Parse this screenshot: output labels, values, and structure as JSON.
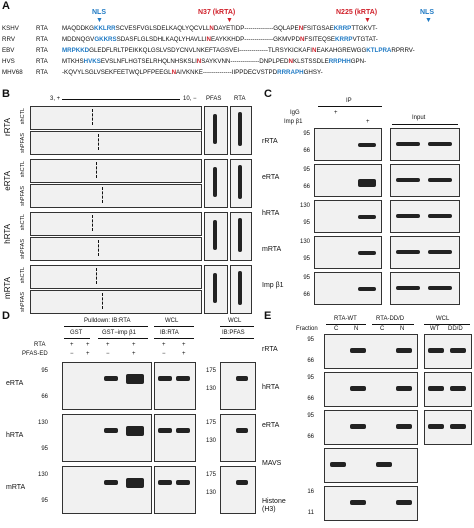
{
  "panel_a": {
    "label": "A",
    "nls_label_left": "NLS",
    "n37_label": "N37 (kRTA)",
    "n225_label": "N225 (kRTA)",
    "nls_label_right": "NLS",
    "rows": [
      {
        "virus": "KSHV",
        "protein": "RTA",
        "seq1": "MAQDDKG",
        "nls1": "KKLRR",
        "seq2": "SCVESFVGLSDELKAQLYQCVLL",
        "n": "N",
        "seq3": "DAYETIDP",
        "dash": "--------------",
        "seq4": "GQLAPE",
        "n2": "N",
        "seq5": "FSITGSAE",
        "nls2": "KRRP",
        "seq6": "TTGKVT-"
      },
      {
        "virus": "RRV",
        "protein": "RTA",
        "seq1": "MDDNQGV",
        "nls1": "GKKRS",
        "seq2": "SDASFLGLSDHLKAQLYHAVLLI",
        "n": "N",
        "seq3": "EAYKKHDP",
        "dash": "--------------",
        "seq4": "GKMVPD",
        "n2": "N",
        "seq5": "FSITEQSE",
        "nls2": "KRRP",
        "seq6": "VTGTAT-"
      },
      {
        "virus": "EBV",
        "protein": "RTA",
        "seq1": "",
        "nls1": "MRPKKD",
        "seq2": "GLEDFLRLTPEIKKQLGSLVSDYCN",
        "n": "",
        "seq3": "VLNKEFTAGSVEI",
        "dash": "--------------",
        "seq4": "TLRSYKICKAFI",
        "n2": "N",
        "seq5": "EAKAHGREWGG",
        "nls2": "KTLPRA",
        "seq6": "RPRRV-"
      },
      {
        "virus": "HVS",
        "protein": "RTA",
        "seq1": "MTKHS",
        "nls1": "HVKS",
        "seq2": "EVSLNFLHGTSELRHQLNHSKSLI",
        "n": "N",
        "seq3": "SAYKVNN",
        "dash": "--------------",
        "seq4": "DNPLPED",
        "n2": "N",
        "seq5": "KLSTSSDLE",
        "nls2": "RRPHH",
        "seq6": "GPN-"
      },
      {
        "virus": "MHV68",
        "protein": "RTA",
        "seq1": "",
        "nls1": "",
        "seq2": "-KQVYLSGLVSEKFEETWQLPFPEEGL",
        "n": "N",
        "seq3": "AIVKNKE",
        "dash": "--------------",
        "seq4": "IIPPDECVSTPD",
        "n2": "",
        "seq5": "",
        "nls2": "RRRAPH",
        "seq6": "GHSY-"
      }
    ]
  },
  "panel_b": {
    "label": "B",
    "gradient_left": "3, +",
    "gradient_right": "10, −",
    "col_pfas": "PFAS",
    "col_rta": "RTA",
    "groups": [
      {
        "name": "rRTA",
        "lanes": [
          "shCTL",
          "shPFAS"
        ]
      },
      {
        "name": "eRTA",
        "lanes": [
          "shCTL",
          "shPFAS"
        ]
      },
      {
        "name": "hRTA",
        "lanes": [
          "shCTL",
          "shPFAS"
        ]
      },
      {
        "name": "mRTA",
        "lanes": [
          "shCTL",
          "shPFAS"
        ]
      }
    ]
  },
  "panel_c": {
    "label": "C",
    "ip": "IP",
    "igg": "IgG",
    "imp": "Imp β1",
    "plus": "+",
    "input": "Input",
    "rows": [
      {
        "name": "rRTA",
        "ticks": [
          "95",
          "66"
        ]
      },
      {
        "name": "eRTA",
        "ticks": [
          "95",
          "66"
        ]
      },
      {
        "name": "hRTA",
        "ticks": [
          "130",
          "95"
        ]
      },
      {
        "name": "mRTA",
        "ticks": [
          "130",
          "95"
        ]
      },
      {
        "name": "Imp β1",
        "ticks": [
          "95",
          "66"
        ]
      }
    ]
  },
  "panel_d": {
    "label": "D",
    "pulldown": "Pulldown: IB:RTA",
    "wcl1": "WCL",
    "wcl2": "WCL",
    "gst": "GST",
    "gst_imp": "GST−imp β1",
    "ib_rta": "IB:RTA",
    "ib_pfas": "IB:PFAS",
    "rta": "RTA",
    "pfas_ed": "PFAS-ED",
    "rta_signs": [
      "+",
      "+",
      "+",
      "+",
      "+",
      "+"
    ],
    "pfas_signs": [
      "−",
      "+",
      "−",
      "+",
      "−",
      "+"
    ],
    "rows": [
      {
        "name": "eRTA",
        "ticks": [
          "95",
          "66"
        ],
        "ticks2": [
          "175",
          "130"
        ]
      },
      {
        "name": "hRTA",
        "ticks": [
          "130",
          "95"
        ],
        "ticks2": [
          "175",
          "130"
        ]
      },
      {
        "name": "mRTA",
        "ticks": [
          "130",
          "95"
        ],
        "ticks2": [
          "175",
          "130"
        ]
      }
    ]
  },
  "panel_e": {
    "label": "E",
    "fraction": "Fraction",
    "rta_wt": "RTA-WT",
    "rta_dd": "RTA-DD/D",
    "wcl": "WCL",
    "c": "C",
    "n": "N",
    "wt": "WT",
    "dd": "DD/D",
    "rows": [
      {
        "name": "rRTA",
        "ticks": [
          "95",
          "66"
        ]
      },
      {
        "name": "hRTA",
        "ticks": [
          "95",
          "66"
        ]
      },
      {
        "name": "eRTA",
        "ticks": [
          "95",
          "66"
        ]
      },
      {
        "name": "MAVS",
        "ticks": [
          "",
          ""
        ]
      },
      {
        "name": "Histone (H3)",
        "ticks": [
          "16",
          "11"
        ]
      }
    ]
  }
}
